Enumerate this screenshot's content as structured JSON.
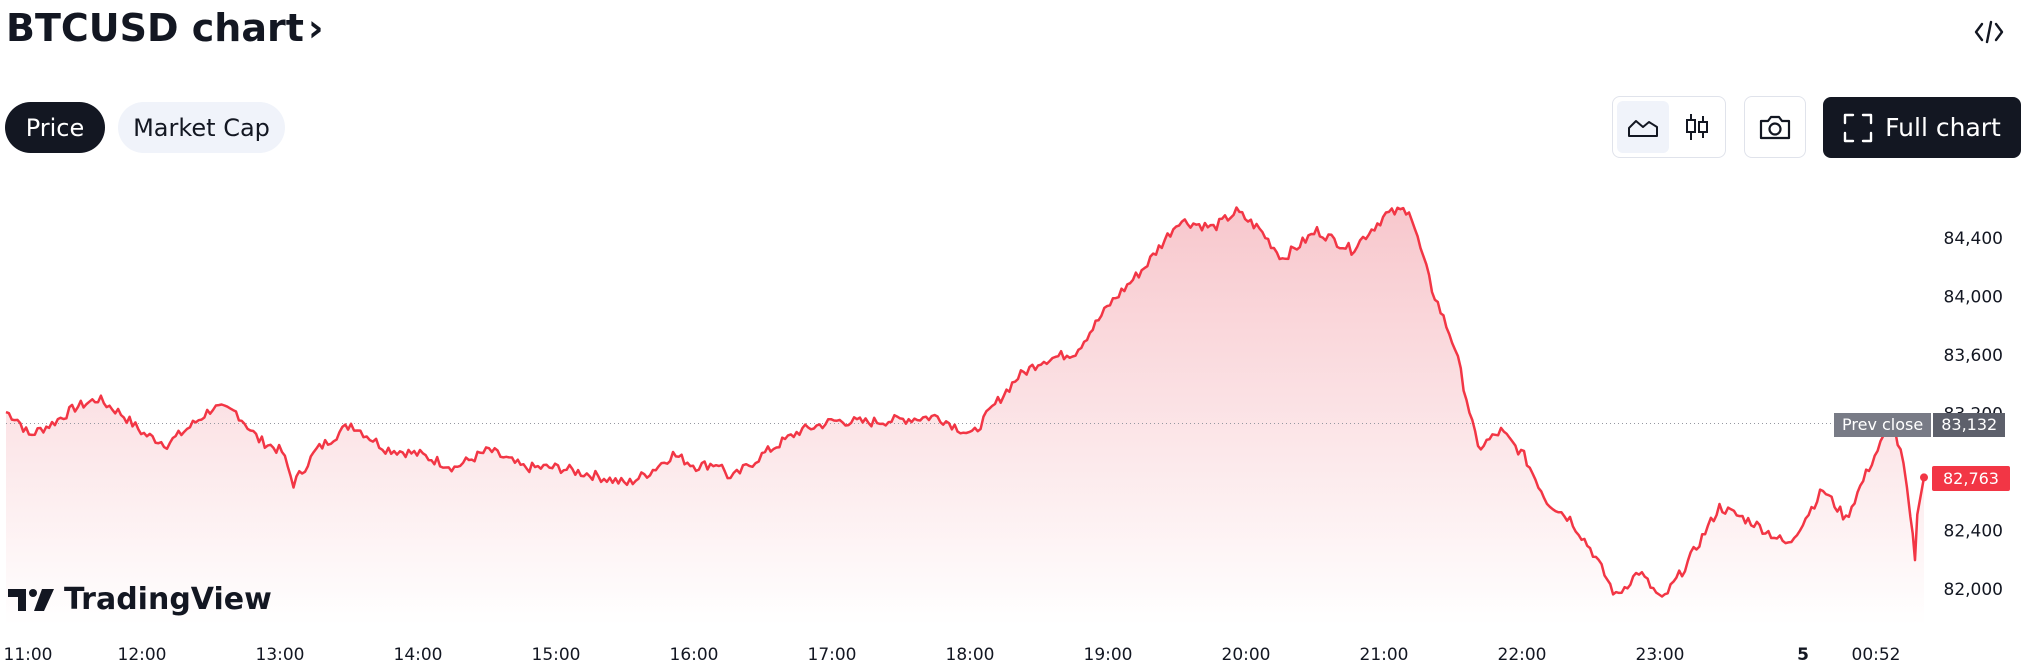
{
  "header": {
    "title": "BTCUSD chart",
    "chevron": "›",
    "embed_icon": "code-icon"
  },
  "tabs": [
    {
      "label": "Price",
      "active": true
    },
    {
      "label": "Market Cap",
      "active": false
    }
  ],
  "toolbar": {
    "area_icon": "area-chart-icon",
    "candle_icon": "candlestick-icon",
    "camera_icon": "camera-icon",
    "full_chart_icon": "fullscreen-icon",
    "full_chart_label": "Full chart"
  },
  "logo": {
    "text": "TradingView",
    "icon": "tradingview-logo-icon"
  },
  "colors": {
    "line": "#f23645",
    "fill_top": "#f7c1c7",
    "fill_bottom": "#ffffff",
    "dark": "#131722",
    "badge_gray": "#787b86"
  },
  "chart_data": {
    "type": "area",
    "x_ticks": [
      "11:00",
      "12:00",
      "13:00",
      "14:00",
      "15:00",
      "16:00",
      "17:00",
      "18:00",
      "19:00",
      "20:00",
      "21:00",
      "22:00",
      "23:00",
      "5",
      "00:52"
    ],
    "y_ticks": [
      "84,400",
      "84,000",
      "83,600",
      "83,200",
      "82,400",
      "82,000"
    ],
    "ylim": [
      81750,
      84700
    ],
    "prev_close": {
      "label": "Prev close",
      "value": 83132,
      "display": "83,132"
    },
    "last_value": {
      "value": 82763,
      "display": "82,763"
    },
    "series": [
      {
        "points": [
          [
            "11:00",
            83210
          ],
          [
            "11:05",
            83160
          ],
          [
            "11:10",
            83050
          ],
          [
            "11:20",
            83130
          ],
          [
            "11:30",
            83240
          ],
          [
            "11:40",
            83300
          ],
          [
            "11:50",
            83200
          ],
          [
            "12:00",
            83060
          ],
          [
            "12:10",
            82990
          ],
          [
            "12:20",
            83110
          ],
          [
            "12:30",
            83240
          ],
          [
            "12:40",
            83210
          ],
          [
            "12:50",
            83020
          ],
          [
            "13:00",
            82940
          ],
          [
            "13:05",
            82720
          ],
          [
            "13:15",
            82950
          ],
          [
            "13:30",
            83130
          ],
          [
            "13:45",
            82960
          ],
          [
            "14:00",
            82920
          ],
          [
            "14:15",
            82830
          ],
          [
            "14:30",
            82950
          ],
          [
            "14:45",
            82830
          ],
          [
            "15:00",
            82830
          ],
          [
            "15:15",
            82780
          ],
          [
            "15:30",
            82720
          ],
          [
            "15:40",
            82800
          ],
          [
            "15:50",
            82920
          ],
          [
            "16:00",
            82840
          ],
          [
            "16:10",
            82860
          ],
          [
            "16:15",
            82750
          ],
          [
            "16:30",
            82930
          ],
          [
            "16:45",
            83080
          ],
          [
            "17:00",
            83150
          ],
          [
            "17:15",
            83140
          ],
          [
            "17:30",
            83160
          ],
          [
            "17:45",
            83180
          ],
          [
            "18:00",
            83050
          ],
          [
            "18:10",
            83260
          ],
          [
            "18:20",
            83450
          ],
          [
            "18:30",
            83560
          ],
          [
            "18:45",
            83620
          ],
          [
            "19:00",
            83950
          ],
          [
            "19:15",
            84200
          ],
          [
            "19:30",
            84520
          ],
          [
            "19:45",
            84470
          ],
          [
            "19:55",
            84580
          ],
          [
            "20:05",
            84460
          ],
          [
            "20:15",
            84260
          ],
          [
            "20:30",
            84450
          ],
          [
            "20:45",
            84320
          ],
          [
            "21:00",
            84560
          ],
          [
            "21:10",
            84600
          ],
          [
            "21:20",
            84050
          ],
          [
            "21:30",
            83650
          ],
          [
            "21:40",
            82960
          ],
          [
            "21:50",
            83080
          ],
          [
            "22:00",
            82910
          ],
          [
            "22:10",
            82600
          ],
          [
            "22:20",
            82480
          ],
          [
            "22:30",
            82250
          ],
          [
            "22:40",
            81950
          ],
          [
            "22:50",
            82120
          ],
          [
            "23:00",
            81920
          ],
          [
            "23:10",
            82150
          ],
          [
            "23:25",
            82560
          ],
          [
            "23:40",
            82450
          ],
          [
            "23:55",
            82300
          ],
          [
            "00:10",
            82680
          ],
          [
            "00:20",
            82480
          ],
          [
            "00:30",
            82830
          ],
          [
            "00:40",
            83150
          ],
          [
            "00:45",
            82850
          ],
          [
            "00:48",
            82480
          ],
          [
            "00:50",
            82220
          ],
          [
            "00:52",
            82763
          ]
        ]
      }
    ]
  }
}
